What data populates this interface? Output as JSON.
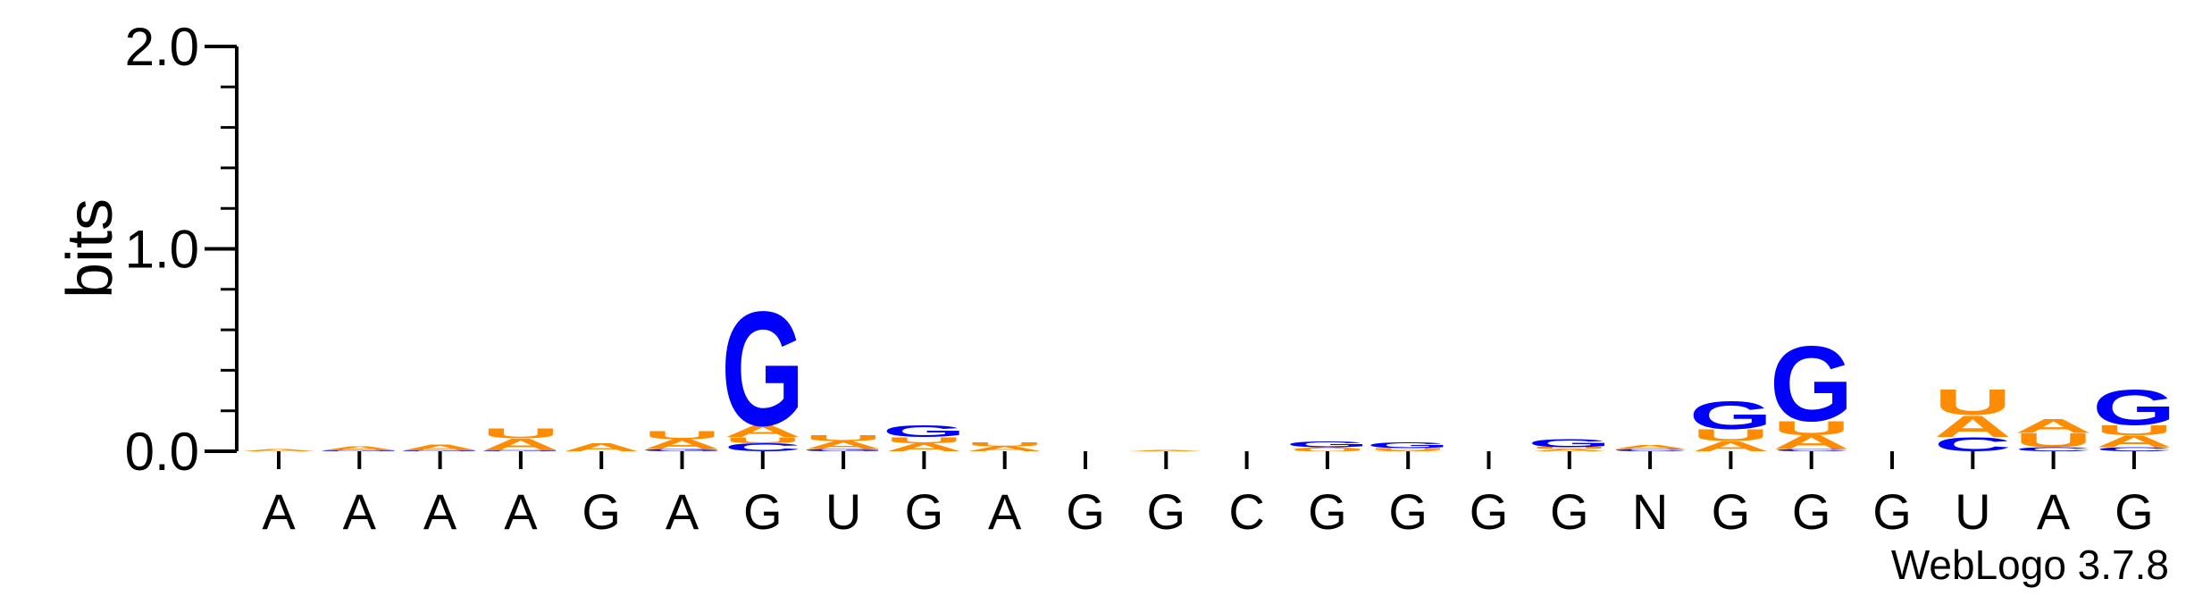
{
  "chart_data": {
    "type": "sequence-logo",
    "ylabel": "bits",
    "ylim": [
      0,
      2.0
    ],
    "yticks": [
      {
        "value": 0.0,
        "label": "0.0"
      },
      {
        "value": 1.0,
        "label": "1.0"
      },
      {
        "value": 2.0,
        "label": "2.0"
      }
    ],
    "colors": {
      "A": "#ff8c00",
      "U": "#ff8c00",
      "G": "#0000ff",
      "C": "#0000ff"
    },
    "positions": [
      {
        "label": "A",
        "stack": [
          [
            "A",
            0.01
          ]
        ]
      },
      {
        "label": "A",
        "stack": [
          [
            "G",
            0.005
          ],
          [
            "A",
            0.02
          ]
        ]
      },
      {
        "label": "A",
        "stack": [
          [
            "G",
            0.005
          ],
          [
            "A",
            0.03
          ]
        ]
      },
      {
        "label": "A",
        "stack": [
          [
            "G",
            0.005
          ],
          [
            "A",
            0.06
          ],
          [
            "U",
            0.05
          ]
        ]
      },
      {
        "label": "G",
        "stack": [
          [
            "A",
            0.04
          ]
        ]
      },
      {
        "label": "A",
        "stack": [
          [
            "G",
            0.01
          ],
          [
            "A",
            0.05
          ],
          [
            "U",
            0.04
          ]
        ]
      },
      {
        "label": "G",
        "stack": [
          [
            "C",
            0.04
          ],
          [
            "U",
            0.03
          ],
          [
            "A",
            0.06
          ],
          [
            "G",
            0.58
          ]
        ]
      },
      {
        "label": "U",
        "stack": [
          [
            "G",
            0.01
          ],
          [
            "A",
            0.04
          ],
          [
            "U",
            0.03
          ]
        ]
      },
      {
        "label": "G",
        "stack": [
          [
            "A",
            0.04
          ],
          [
            "U",
            0.03
          ],
          [
            "G",
            0.06
          ]
        ]
      },
      {
        "label": "A",
        "stack": [
          [
            "A",
            0.025
          ],
          [
            "U",
            0.02
          ]
        ]
      },
      {
        "label": "G",
        "stack": []
      },
      {
        "label": "G",
        "stack": [
          [
            "A",
            0.005
          ]
        ]
      },
      {
        "label": "C",
        "stack": []
      },
      {
        "label": "G",
        "stack": [
          [
            "U",
            0.01
          ],
          [
            "A",
            0.01
          ],
          [
            "G",
            0.03
          ]
        ]
      },
      {
        "label": "G",
        "stack": [
          [
            "A",
            0.005
          ],
          [
            "U",
            0.01
          ],
          [
            "G",
            0.03
          ]
        ]
      },
      {
        "label": "G",
        "stack": []
      },
      {
        "label": "G",
        "stack": [
          [
            "A",
            0.01
          ],
          [
            "U",
            0.01
          ],
          [
            "G",
            0.04
          ]
        ]
      },
      {
        "label": "N",
        "stack": [
          [
            "C",
            0.01
          ],
          [
            "A",
            0.02
          ]
        ]
      },
      {
        "label": "G",
        "stack": [
          [
            "A",
            0.05
          ],
          [
            "U",
            0.06
          ],
          [
            "G",
            0.14
          ]
        ]
      },
      {
        "label": "G",
        "stack": [
          [
            "C",
            0.01
          ],
          [
            "A",
            0.07
          ],
          [
            "U",
            0.07
          ],
          [
            "G",
            0.38
          ]
        ]
      },
      {
        "label": "G",
        "stack": []
      },
      {
        "label": "U",
        "stack": [
          [
            "C",
            0.07
          ],
          [
            "A",
            0.11
          ],
          [
            "U",
            0.13
          ]
        ]
      },
      {
        "label": "A",
        "stack": [
          [
            "C",
            0.02
          ],
          [
            "U",
            0.07
          ],
          [
            "A",
            0.07
          ]
        ]
      },
      {
        "label": "G",
        "stack": [
          [
            "C",
            0.02
          ],
          [
            "A",
            0.06
          ],
          [
            "U",
            0.05
          ],
          [
            "G",
            0.18
          ]
        ]
      }
    ]
  },
  "credit": "WebLogo 3.7.8"
}
